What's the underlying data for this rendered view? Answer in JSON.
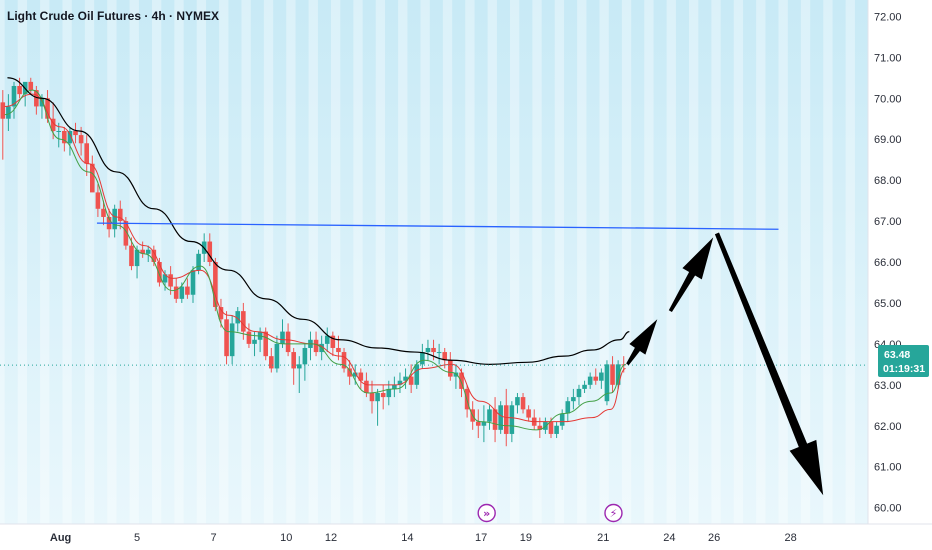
{
  "chart_data": {
    "type": "candlestick",
    "title": "Light Crude Oil Futures · 4h · NYMEX",
    "y_ticks": [
      "72.00",
      "71.00",
      "70.00",
      "69.00",
      "68.00",
      "67.00",
      "66.00",
      "65.00",
      "64.00",
      "63.00",
      "62.00",
      "61.00",
      "60.00"
    ],
    "y_range": [
      59.6,
      72.4
    ],
    "x_ticks": [
      {
        "label": "Aug",
        "x": 0
      },
      {
        "label": "5",
        "x": 8.2
      },
      {
        "label": "7",
        "x": 16.4
      },
      {
        "label": "10",
        "x": 24.2
      },
      {
        "label": "12",
        "x": 29.0
      },
      {
        "label": "14",
        "x": 37.2
      },
      {
        "label": "17",
        "x": 45.1
      },
      {
        "label": "19",
        "x": 49.9
      },
      {
        "label": "21",
        "x": 58.2
      },
      {
        "label": "24",
        "x": 65.3
      },
      {
        "label": "26",
        "x": 70.1
      },
      {
        "label": "28",
        "x": 78.3
      }
    ],
    "x_range": [
      -6.5,
      86.6
    ],
    "last_price": "63.48",
    "countdown": "01:19:31",
    "colors": {
      "up": "#26a69a",
      "down": "#ef5350",
      "sma_long": "#000000",
      "sma_mid": "#e53935",
      "sma_short": "#43a047",
      "hline": "#2962ff",
      "arrows": "#000000",
      "badge": "#26a69a",
      "event": "#9c27b0"
    },
    "candles": [
      [
        -6.2,
        69.9,
        70.2,
        68.5,
        69.5
      ],
      [
        -5.6,
        69.5,
        70.1,
        69.2,
        69.8
      ],
      [
        -5.0,
        69.8,
        70.4,
        69.5,
        70.3
      ],
      [
        -4.4,
        70.3,
        70.5,
        70.0,
        70.1
      ],
      [
        -3.8,
        70.1,
        70.3,
        69.8,
        70.4
      ],
      [
        -3.2,
        70.4,
        70.5,
        70.1,
        70.2
      ],
      [
        -2.6,
        70.2,
        70.3,
        69.6,
        69.8
      ],
      [
        -2.0,
        69.8,
        70.1,
        69.5,
        70.0
      ],
      [
        -1.4,
        70.0,
        70.2,
        69.4,
        69.5
      ],
      [
        -0.8,
        69.5,
        69.9,
        69.0,
        69.2
      ],
      [
        -0.2,
        69.2,
        69.4,
        68.8,
        69.2
      ],
      [
        0.4,
        69.2,
        69.3,
        68.7,
        68.9
      ],
      [
        1.0,
        68.9,
        69.3,
        68.6,
        69.2
      ],
      [
        1.6,
        69.2,
        69.4,
        68.9,
        69.1
      ],
      [
        2.2,
        69.1,
        69.3,
        68.6,
        68.9
      ],
      [
        2.8,
        68.9,
        69.1,
        68.1,
        68.4
      ],
      [
        3.4,
        68.4,
        68.6,
        67.8,
        67.7
      ],
      [
        4.0,
        67.7,
        67.9,
        67.1,
        67.3
      ],
      [
        4.6,
        67.3,
        67.5,
        66.9,
        67.1
      ],
      [
        5.2,
        67.1,
        67.3,
        66.6,
        66.8
      ],
      [
        5.8,
        66.8,
        67.4,
        66.6,
        67.3
      ],
      [
        6.4,
        67.3,
        67.5,
        66.8,
        67.0
      ],
      [
        7.0,
        67.0,
        67.1,
        66.3,
        66.4
      ],
      [
        7.6,
        66.4,
        66.6,
        65.8,
        65.9
      ],
      [
        8.2,
        65.9,
        66.4,
        65.6,
        66.3
      ],
      [
        8.8,
        66.3,
        66.5,
        66.1,
        66.2
      ],
      [
        9.4,
        66.2,
        66.4,
        66.0,
        66.3
      ],
      [
        10.0,
        66.3,
        66.4,
        65.9,
        66.0
      ],
      [
        10.6,
        66.0,
        66.1,
        65.4,
        65.5
      ],
      [
        11.2,
        65.5,
        65.8,
        65.3,
        65.7
      ],
      [
        11.8,
        65.7,
        65.9,
        65.2,
        65.4
      ],
      [
        12.4,
        65.4,
        65.6,
        65.0,
        65.1
      ],
      [
        13.0,
        65.1,
        65.5,
        65.0,
        65.4
      ],
      [
        13.6,
        65.4,
        65.6,
        65.1,
        65.2
      ],
      [
        14.2,
        65.2,
        65.9,
        65.0,
        65.8
      ],
      [
        14.8,
        65.8,
        66.3,
        65.7,
        66.2
      ],
      [
        15.4,
        66.2,
        66.7,
        66.0,
        66.5
      ],
      [
        16.0,
        66.5,
        66.7,
        65.9,
        66.0
      ],
      [
        16.6,
        66.0,
        66.1,
        64.8,
        64.9
      ],
      [
        17.2,
        64.9,
        65.1,
        64.4,
        64.6
      ],
      [
        17.8,
        64.6,
        64.8,
        63.5,
        63.7
      ],
      [
        18.4,
        63.7,
        64.7,
        63.5,
        64.5
      ],
      [
        19.0,
        64.5,
        64.9,
        64.3,
        64.8
      ],
      [
        19.6,
        64.8,
        65.0,
        64.1,
        64.3
      ],
      [
        20.2,
        64.3,
        64.5,
        63.9,
        64.0
      ],
      [
        20.8,
        64.0,
        64.3,
        63.7,
        64.1
      ],
      [
        21.4,
        64.1,
        64.4,
        63.8,
        64.3
      ],
      [
        22.0,
        64.3,
        64.4,
        63.6,
        63.7
      ],
      [
        22.6,
        63.7,
        63.9,
        63.3,
        63.4
      ],
      [
        23.2,
        63.4,
        64.2,
        63.3,
        64.0
      ],
      [
        23.8,
        64.0,
        64.6,
        63.9,
        64.3
      ],
      [
        24.4,
        64.3,
        64.5,
        63.7,
        63.8
      ],
      [
        25.0,
        63.8,
        63.9,
        63.0,
        63.4
      ],
      [
        25.6,
        63.4,
        63.7,
        62.8,
        63.5
      ],
      [
        26.2,
        63.5,
        64.0,
        63.1,
        63.9
      ],
      [
        26.8,
        63.9,
        64.3,
        63.6,
        64.1
      ],
      [
        27.4,
        64.1,
        64.3,
        63.7,
        63.8
      ],
      [
        28.0,
        63.8,
        64.2,
        63.6,
        64.0
      ],
      [
        28.6,
        64.0,
        64.4,
        63.8,
        64.2
      ],
      [
        29.2,
        64.2,
        64.3,
        63.7,
        63.9
      ],
      [
        29.8,
        63.9,
        64.2,
        63.6,
        63.8
      ],
      [
        30.4,
        63.8,
        63.9,
        63.3,
        63.4
      ],
      [
        31.0,
        63.4,
        63.6,
        63.0,
        63.2
      ],
      [
        31.6,
        63.2,
        63.5,
        63.0,
        63.3
      ],
      [
        32.2,
        63.3,
        63.4,
        62.9,
        63.1
      ],
      [
        32.8,
        63.1,
        63.3,
        62.7,
        62.8
      ],
      [
        33.4,
        62.8,
        63.1,
        62.3,
        62.6
      ],
      [
        34.0,
        62.6,
        62.9,
        62.0,
        62.8
      ],
      [
        34.6,
        62.8,
        63.0,
        62.4,
        62.7
      ],
      [
        35.2,
        62.7,
        63.1,
        62.5,
        62.9
      ],
      [
        35.8,
        62.9,
        63.2,
        62.7,
        63.0
      ],
      [
        36.4,
        63.0,
        63.3,
        62.8,
        63.1
      ],
      [
        37.0,
        63.1,
        63.4,
        62.9,
        63.2
      ],
      [
        37.6,
        63.2,
        63.5,
        62.8,
        63.0
      ],
      [
        38.2,
        63.0,
        63.6,
        62.9,
        63.5
      ],
      [
        38.8,
        63.5,
        64.0,
        63.4,
        63.8
      ],
      [
        39.4,
        63.8,
        64.1,
        63.6,
        63.9
      ],
      [
        40.0,
        63.9,
        64.1,
        63.6,
        63.8
      ],
      [
        40.6,
        63.8,
        64.0,
        63.5,
        63.8
      ],
      [
        41.2,
        63.8,
        63.9,
        63.4,
        63.6
      ],
      [
        41.8,
        63.6,
        63.8,
        63.1,
        63.2
      ],
      [
        42.4,
        63.2,
        63.5,
        62.9,
        63.3
      ],
      [
        43.0,
        63.3,
        63.4,
        62.7,
        62.9
      ],
      [
        43.6,
        62.9,
        63.0,
        62.2,
        62.4
      ],
      [
        44.2,
        62.4,
        62.6,
        61.9,
        62.1
      ],
      [
        44.8,
        62.1,
        62.4,
        61.7,
        62.0
      ],
      [
        45.4,
        62.0,
        62.5,
        61.6,
        62.1
      ],
      [
        46.0,
        62.1,
        62.5,
        61.9,
        62.4
      ],
      [
        46.6,
        62.4,
        62.7,
        61.6,
        61.9
      ],
      [
        47.2,
        61.9,
        62.6,
        61.8,
        62.5
      ],
      [
        47.8,
        62.5,
        62.9,
        61.5,
        61.8
      ],
      [
        48.4,
        61.8,
        62.6,
        61.6,
        62.5
      ],
      [
        49.0,
        62.5,
        62.8,
        62.3,
        62.7
      ],
      [
        49.6,
        62.7,
        62.8,
        62.3,
        62.4
      ],
      [
        50.2,
        62.4,
        62.5,
        62.1,
        62.2
      ],
      [
        50.8,
        62.2,
        62.4,
        61.9,
        62.0
      ],
      [
        51.4,
        62.0,
        62.2,
        61.7,
        61.9
      ],
      [
        52.0,
        61.9,
        62.2,
        61.8,
        62.1
      ],
      [
        52.6,
        62.1,
        62.2,
        61.7,
        61.8
      ],
      [
        53.2,
        61.8,
        62.1,
        61.7,
        62.0
      ],
      [
        53.8,
        62.0,
        62.4,
        61.9,
        62.3
      ],
      [
        54.4,
        62.3,
        62.7,
        62.1,
        62.6
      ],
      [
        55.0,
        62.6,
        62.9,
        62.4,
        62.7
      ],
      [
        55.6,
        62.7,
        63.0,
        62.5,
        62.9
      ],
      [
        56.2,
        62.9,
        63.1,
        62.8,
        63.0
      ],
      [
        56.8,
        63.0,
        63.3,
        62.9,
        63.2
      ],
      [
        57.4,
        63.2,
        63.4,
        63.0,
        63.1
      ],
      [
        58.0,
        63.1,
        63.4,
        62.9,
        63.3
      ],
      [
        58.6,
        62.6,
        63.6,
        62.5,
        63.5
      ],
      [
        59.2,
        63.5,
        63.7,
        62.8,
        63.0
      ],
      [
        59.8,
        63.0,
        63.6,
        62.9,
        63.5
      ],
      [
        60.4,
        63.5,
        63.7,
        63.3,
        63.48
      ]
    ],
    "sma_long": [
      [
        -5.7,
        70.5
      ],
      [
        -2,
        70
      ],
      [
        2,
        69.2
      ],
      [
        6,
        68.2
      ],
      [
        10,
        67.3
      ],
      [
        14,
        66.5
      ],
      [
        18,
        65.8
      ],
      [
        22,
        65.1
      ],
      [
        26,
        64.6
      ],
      [
        30,
        64.1
      ],
      [
        34,
        63.9
      ],
      [
        38,
        63.8
      ],
      [
        42,
        63.6
      ],
      [
        46,
        63.5
      ],
      [
        50,
        63.55
      ],
      [
        54,
        63.7
      ],
      [
        57,
        63.85
      ],
      [
        60,
        64.1
      ],
      [
        61,
        64.3
      ]
    ],
    "sma_mid": [
      [
        -6,
        69.8
      ],
      [
        -3,
        70.1
      ],
      [
        0,
        69.3
      ],
      [
        3,
        68.4
      ],
      [
        6,
        67.1
      ],
      [
        9,
        66.4
      ],
      [
        12,
        65.6
      ],
      [
        15,
        65.8
      ],
      [
        18,
        64.7
      ],
      [
        21,
        64.3
      ],
      [
        24,
        64.1
      ],
      [
        27,
        64.0
      ],
      [
        30,
        63.7
      ],
      [
        33,
        63.0
      ],
      [
        36,
        63.0
      ],
      [
        39,
        63.4
      ],
      [
        42,
        63.5
      ],
      [
        45,
        62.6
      ],
      [
        48,
        62.2
      ],
      [
        51,
        62.1
      ],
      [
        54,
        62.1
      ],
      [
        57,
        62.2
      ],
      [
        59,
        62.4
      ],
      [
        60.6,
        63.4
      ]
    ],
    "sma_short": [
      [
        -6,
        69.6
      ],
      [
        -3,
        70.2
      ],
      [
        0,
        69.0
      ],
      [
        3,
        68.2
      ],
      [
        6,
        66.9
      ],
      [
        9,
        66.2
      ],
      [
        12,
        65.3
      ],
      [
        15,
        65.9
      ],
      [
        18,
        64.3
      ],
      [
        21,
        64.2
      ],
      [
        24,
        64.0
      ],
      [
        27,
        64.0
      ],
      [
        30,
        63.5
      ],
      [
        33,
        62.8
      ],
      [
        36,
        62.9
      ],
      [
        39,
        63.6
      ],
      [
        42,
        63.3
      ],
      [
        45,
        62.1
      ],
      [
        48,
        62.0
      ],
      [
        51,
        61.9
      ],
      [
        54,
        62.3
      ],
      [
        57,
        62.6
      ],
      [
        59,
        62.8
      ],
      [
        60.6,
        63.5
      ]
    ],
    "hline": {
      "x1": 3.9,
      "y1": 66.95,
      "x2": 77.0,
      "y2": 66.8
    },
    "arrows": [
      {
        "x1": 60.8,
        "y1": 63.5,
        "x2": 64.0,
        "y2": 64.6,
        "w": 6
      },
      {
        "x1": 65.4,
        "y1": 64.8,
        "x2": 70.0,
        "y2": 66.6,
        "w": 7
      },
      {
        "x1": 70.4,
        "y1": 66.7,
        "x2": 81.8,
        "y2": 60.3,
        "w": 9
      }
    ],
    "event_markers": [
      {
        "x": 45.7,
        "glyph": "»"
      },
      {
        "x": 59.3,
        "glyph": "⚡"
      }
    ]
  }
}
